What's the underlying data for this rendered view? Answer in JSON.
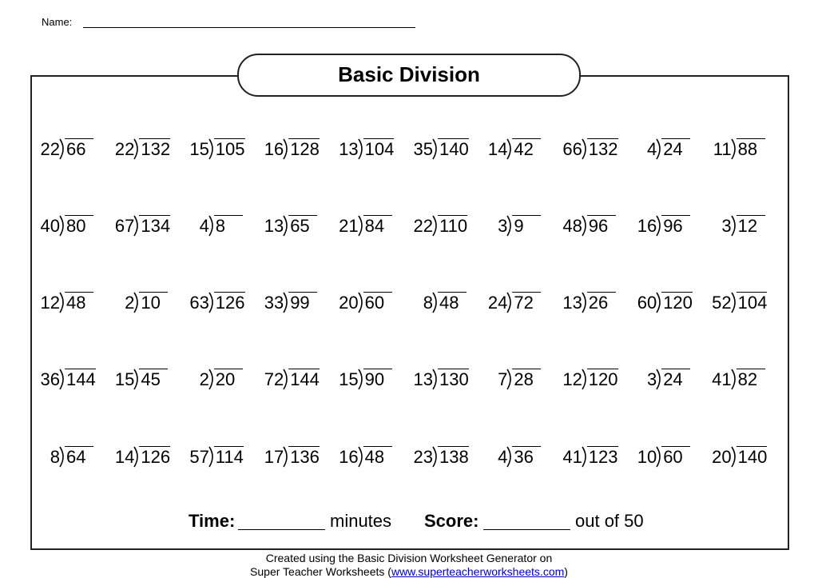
{
  "header": {
    "name_label": "Name:"
  },
  "title": "Basic Division",
  "problems": {
    "rows": [
      [
        {
          "divisor": 22,
          "dividend": 66
        },
        {
          "divisor": 22,
          "dividend": 132
        },
        {
          "divisor": 15,
          "dividend": 105
        },
        {
          "divisor": 16,
          "dividend": 128
        },
        {
          "divisor": 13,
          "dividend": 104
        },
        {
          "divisor": 35,
          "dividend": 140
        },
        {
          "divisor": 14,
          "dividend": 42
        },
        {
          "divisor": 66,
          "dividend": 132
        },
        {
          "divisor": 4,
          "dividend": 24
        },
        {
          "divisor": 11,
          "dividend": 88
        }
      ],
      [
        {
          "divisor": 40,
          "dividend": 80
        },
        {
          "divisor": 67,
          "dividend": 134
        },
        {
          "divisor": 4,
          "dividend": 8
        },
        {
          "divisor": 13,
          "dividend": 65
        },
        {
          "divisor": 21,
          "dividend": 84
        },
        {
          "divisor": 22,
          "dividend": 110
        },
        {
          "divisor": 3,
          "dividend": 9
        },
        {
          "divisor": 48,
          "dividend": 96
        },
        {
          "divisor": 16,
          "dividend": 96
        },
        {
          "divisor": 3,
          "dividend": 12
        }
      ],
      [
        {
          "divisor": 12,
          "dividend": 48
        },
        {
          "divisor": 2,
          "dividend": 10
        },
        {
          "divisor": 63,
          "dividend": 126
        },
        {
          "divisor": 33,
          "dividend": 99
        },
        {
          "divisor": 20,
          "dividend": 60
        },
        {
          "divisor": 8,
          "dividend": 48
        },
        {
          "divisor": 24,
          "dividend": 72
        },
        {
          "divisor": 13,
          "dividend": 26
        },
        {
          "divisor": 60,
          "dividend": 120
        },
        {
          "divisor": 52,
          "dividend": 104
        }
      ],
      [
        {
          "divisor": 36,
          "dividend": 144
        },
        {
          "divisor": 15,
          "dividend": 45
        },
        {
          "divisor": 2,
          "dividend": 20
        },
        {
          "divisor": 72,
          "dividend": 144
        },
        {
          "divisor": 15,
          "dividend": 90
        },
        {
          "divisor": 13,
          "dividend": 130
        },
        {
          "divisor": 7,
          "dividend": 28
        },
        {
          "divisor": 12,
          "dividend": 120
        },
        {
          "divisor": 3,
          "dividend": 24
        },
        {
          "divisor": 41,
          "dividend": 82
        }
      ],
      [
        {
          "divisor": 8,
          "dividend": 64
        },
        {
          "divisor": 14,
          "dividend": 126
        },
        {
          "divisor": 57,
          "dividend": 114
        },
        {
          "divisor": 17,
          "dividend": 136
        },
        {
          "divisor": 16,
          "dividend": 48
        },
        {
          "divisor": 23,
          "dividend": 138
        },
        {
          "divisor": 4,
          "dividend": 36
        },
        {
          "divisor": 41,
          "dividend": 123
        },
        {
          "divisor": 10,
          "dividend": 60
        },
        {
          "divisor": 20,
          "dividend": 140
        }
      ]
    ]
  },
  "summary": {
    "time_label": "Time:",
    "time_unit": "minutes",
    "score_label": "Score:",
    "score_total": "out of 50"
  },
  "footer": {
    "line1": "Created using the Basic Division Worksheet Generator on",
    "line2_prefix": "Super Teacher Worksheets (",
    "link": "www.superteacherworksheets.com",
    "line2_suffix": ")"
  }
}
